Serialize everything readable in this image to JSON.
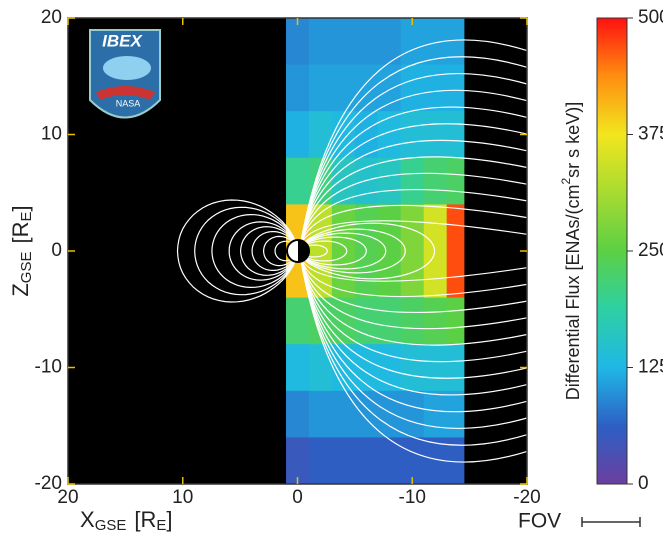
{
  "chart_data": {
    "type": "heatmap",
    "x_label": {
      "main": "X",
      "sub": "GSE",
      "unit": "[R",
      "unit_sub": "E",
      "close": "]"
    },
    "y_label": {
      "main": "Z",
      "sub": "GSE",
      "unit": "[R",
      "unit_sub": "E",
      "close": "]"
    },
    "xlim": [
      20,
      -20
    ],
    "xticks": [
      20,
      10,
      0,
      -10,
      -20
    ],
    "ylim": [
      -20,
      20
    ],
    "yticks": [
      -20,
      -10,
      0,
      10,
      20
    ],
    "x_edges": [
      1,
      -1,
      -3,
      -5,
      -7,
      -9,
      -11,
      -13,
      -14.5
    ],
    "y_edges": [
      20,
      16,
      12,
      8,
      4,
      0,
      -4,
      -8,
      -12,
      -16,
      -20
    ],
    "values": [
      [
        90,
        100,
        100,
        100,
        100,
        110,
        110,
        110
      ],
      [
        100,
        110,
        110,
        110,
        110,
        120,
        120,
        120
      ],
      [
        120,
        140,
        130,
        120,
        130,
        140,
        140,
        140
      ],
      [
        200,
        210,
        160,
        150,
        160,
        200,
        220,
        230
      ],
      [
        400,
        330,
        260,
        240,
        250,
        280,
        350,
        470
      ],
      [
        400,
        330,
        260,
        240,
        250,
        280,
        350,
        470
      ],
      [
        220,
        230,
        230,
        220,
        220,
        230,
        240,
        250
      ],
      [
        130,
        140,
        130,
        130,
        130,
        140,
        140,
        140
      ],
      [
        90,
        100,
        100,
        100,
        100,
        100,
        110,
        110
      ],
      [
        50,
        60,
        60,
        60,
        60,
        60,
        60,
        60
      ]
    ],
    "colorbar": {
      "label": {
        "before": "Differential Flux [ENAs/(cm",
        "sup": "2",
        "after": "sr s keV)]"
      },
      "lim": [
        0,
        500
      ],
      "ticks": [
        0,
        125,
        250,
        375,
        500
      ],
      "colorscale": [
        [
          0,
          "#6b3fa0"
        ],
        [
          62,
          "#2d5fc4"
        ],
        [
          125,
          "#1fb8e6"
        ],
        [
          190,
          "#2fd0a0"
        ],
        [
          250,
          "#5cd044"
        ],
        [
          375,
          "#f2e61e"
        ],
        [
          440,
          "#ff8a10"
        ],
        [
          500,
          "#ff1010"
        ]
      ]
    },
    "fov_label": "FOV",
    "logo": {
      "mission": "IBEX",
      "agency": "NASA"
    }
  }
}
